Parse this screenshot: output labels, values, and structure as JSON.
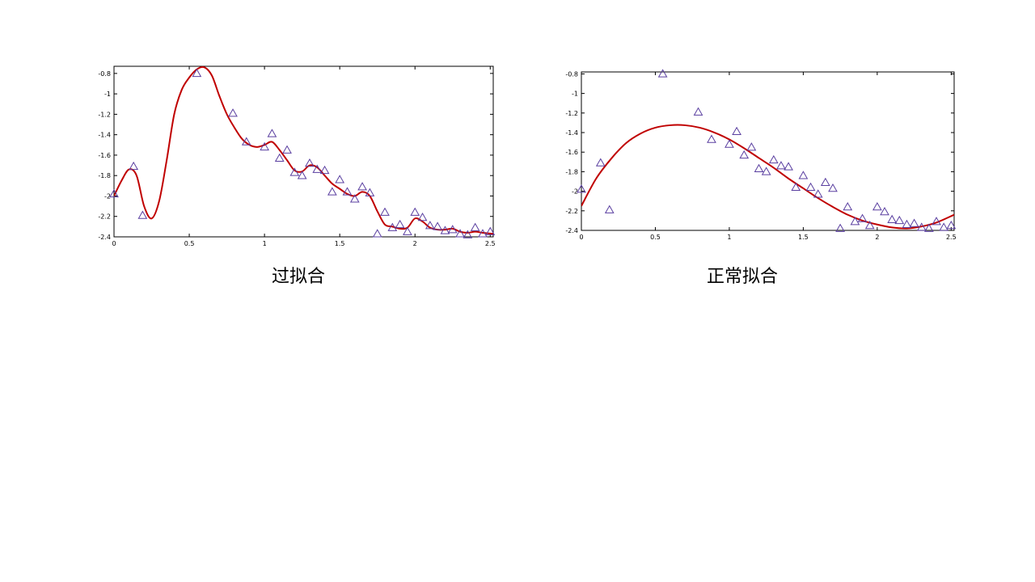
{
  "captions": {
    "left": "过拟合",
    "right": "正常拟合"
  },
  "colors": {
    "fit_line": "#c00000",
    "marker": "#5a3fa0",
    "axis": "#000000"
  },
  "chart_data": [
    {
      "type": "scatter",
      "title": "",
      "xlabel": "",
      "ylabel": "",
      "xlim": [
        0,
        2.52
      ],
      "ylim": [
        -2.4,
        -0.73
      ],
      "xticks": [
        "0",
        "0.5",
        "1",
        "1.5",
        "2",
        "2.5"
      ],
      "yticks": [
        "-0.8",
        "-1",
        "-1.2",
        "-1.4",
        "-1.6",
        "-1.8",
        "-2",
        "-2.2",
        "-2.4"
      ],
      "grid": false,
      "series": [
        {
          "marker": "triangle",
          "x": [
            0,
            0.13,
            0.19,
            0.55,
            0.79,
            0.88,
            1.0,
            1.05,
            1.1,
            1.15,
            1.2,
            1.25,
            1.3,
            1.35,
            1.4,
            1.45,
            1.5,
            1.55,
            1.6,
            1.65,
            1.7,
            1.75,
            1.8,
            1.85,
            1.9,
            1.95,
            2.0,
            2.05,
            2.1,
            2.15,
            2.2,
            2.25,
            2.3,
            2.35,
            2.4,
            2.45,
            2.5
          ],
          "y": [
            -1.98,
            -1.71,
            -2.19,
            -0.8,
            -1.19,
            -1.47,
            -1.52,
            -1.39,
            -1.63,
            -1.55,
            -1.77,
            -1.8,
            -1.68,
            -1.74,
            -1.75,
            -1.96,
            -1.84,
            -1.96,
            -2.03,
            -1.91,
            -1.97,
            -2.37,
            -2.16,
            -2.31,
            -2.28,
            -2.35,
            -2.16,
            -2.21,
            -2.29,
            -2.3,
            -2.34,
            -2.33,
            -2.37,
            -2.38,
            -2.31,
            -2.37,
            -2.35
          ]
        },
        {
          "line": true,
          "x": [
            0,
            0.05,
            0.1,
            0.15,
            0.2,
            0.25,
            0.3,
            0.35,
            0.4,
            0.45,
            0.5,
            0.55,
            0.6,
            0.65,
            0.7,
            0.75,
            0.8,
            0.85,
            0.9,
            0.95,
            1.0,
            1.05,
            1.1,
            1.15,
            1.2,
            1.25,
            1.3,
            1.35,
            1.4,
            1.45,
            1.5,
            1.55,
            1.6,
            1.65,
            1.7,
            1.75,
            1.8,
            1.85,
            1.9,
            1.95,
            2.0,
            2.05,
            2.1,
            2.15,
            2.2,
            2.25,
            2.3,
            2.35,
            2.4,
            2.45,
            2.52
          ],
          "y": [
            -2.0,
            -1.85,
            -1.74,
            -1.8,
            -2.1,
            -2.22,
            -2.05,
            -1.65,
            -1.2,
            -0.96,
            -0.84,
            -0.76,
            -0.74,
            -0.82,
            -1.02,
            -1.2,
            -1.33,
            -1.44,
            -1.5,
            -1.52,
            -1.5,
            -1.47,
            -1.55,
            -1.65,
            -1.75,
            -1.76,
            -1.7,
            -1.72,
            -1.8,
            -1.88,
            -1.93,
            -1.98,
            -2.0,
            -1.96,
            -2.0,
            -2.15,
            -2.28,
            -2.3,
            -2.32,
            -2.31,
            -2.22,
            -2.25,
            -2.31,
            -2.33,
            -2.33,
            -2.32,
            -2.35,
            -2.36,
            -2.35,
            -2.36,
            -2.37
          ]
        }
      ]
    },
    {
      "type": "scatter",
      "title": "",
      "xlabel": "",
      "ylabel": "",
      "xlim": [
        0,
        2.52
      ],
      "ylim": [
        -2.4,
        -0.78
      ],
      "xticks": [
        "0",
        "0.5",
        "1",
        "1.5",
        "2",
        "2.5"
      ],
      "yticks": [
        "-0.8",
        "-1",
        "-1.2",
        "-1.4",
        "-1.6",
        "-1.8",
        "-2",
        "-2.2",
        "-2.4"
      ],
      "grid": false,
      "series": [
        {
          "marker": "triangle",
          "x": [
            0,
            0.13,
            0.19,
            0.55,
            0.79,
            0.88,
            1.0,
            1.05,
            1.1,
            1.15,
            1.2,
            1.25,
            1.3,
            1.35,
            1.4,
            1.45,
            1.5,
            1.55,
            1.6,
            1.65,
            1.7,
            1.75,
            1.8,
            1.85,
            1.9,
            1.95,
            2.0,
            2.05,
            2.1,
            2.15,
            2.2,
            2.25,
            2.3,
            2.35,
            2.4,
            2.45,
            2.5
          ],
          "y": [
            -1.98,
            -1.71,
            -2.19,
            -0.8,
            -1.19,
            -1.47,
            -1.52,
            -1.39,
            -1.63,
            -1.55,
            -1.77,
            -1.8,
            -1.68,
            -1.74,
            -1.75,
            -1.96,
            -1.84,
            -1.96,
            -2.03,
            -1.91,
            -1.97,
            -2.38,
            -2.16,
            -2.31,
            -2.28,
            -2.35,
            -2.16,
            -2.21,
            -2.29,
            -2.3,
            -2.34,
            -2.33,
            -2.37,
            -2.38,
            -2.31,
            -2.37,
            -2.35
          ]
        },
        {
          "line": true,
          "x": [
            0,
            0.1,
            0.2,
            0.3,
            0.4,
            0.5,
            0.6,
            0.7,
            0.8,
            0.9,
            1.0,
            1.1,
            1.2,
            1.3,
            1.4,
            1.5,
            1.6,
            1.7,
            1.8,
            1.9,
            2.0,
            2.1,
            2.2,
            2.3,
            2.4,
            2.52
          ],
          "y": [
            -2.15,
            -1.87,
            -1.67,
            -1.51,
            -1.41,
            -1.35,
            -1.325,
            -1.325,
            -1.35,
            -1.4,
            -1.47,
            -1.56,
            -1.66,
            -1.76,
            -1.87,
            -1.97,
            -2.07,
            -2.16,
            -2.24,
            -2.3,
            -2.34,
            -2.37,
            -2.38,
            -2.36,
            -2.32,
            -2.24
          ]
        }
      ]
    }
  ]
}
